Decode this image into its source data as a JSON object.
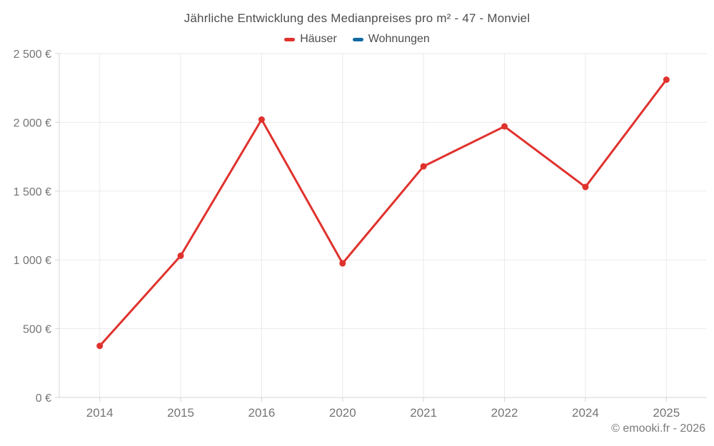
{
  "header": {
    "title": "Jährliche Entwicklung des Medianpreises pro m² - 47 - Monviel"
  },
  "footer": {
    "text": "© emooki.fr - 2026"
  },
  "chart_data": {
    "type": "line",
    "title": "Jährliche Entwicklung des Medianpreises pro m² - 47 - Monviel",
    "categories": [
      "2014",
      "2015",
      "2016",
      "2020",
      "2021",
      "2022",
      "2024",
      "2025"
    ],
    "series": [
      {
        "name": "Häuser",
        "color": "#e0322d",
        "values": [
          375,
          1030,
          2020,
          975,
          1680,
          1970,
          1530,
          2310
        ]
      },
      {
        "name": "Wohnungen",
        "color": "#116aa2",
        "values": []
      }
    ],
    "xlabel": "",
    "ylabel": "",
    "ylim": [
      0,
      2500
    ],
    "y_tick_step": 500,
    "y_tick_suffix": " €",
    "grid": true,
    "legend_position": "top",
    "marker": "circle"
  },
  "colors": {
    "grid": "#eaeaea",
    "axis": "#d6d6d6",
    "tick_label": "#757575",
    "title_text": "#4d4d4d",
    "footer_text": "#7a7a7a"
  }
}
